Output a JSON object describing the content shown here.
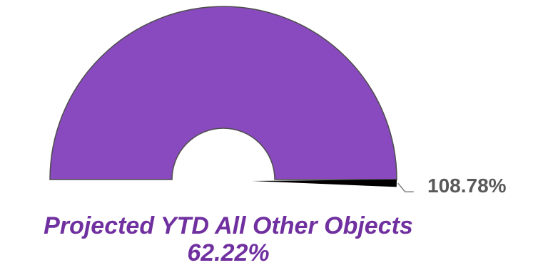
{
  "colors": {
    "fill": "#8a4abf",
    "stroke": "#4d4d4d",
    "marker": "#000000",
    "caption": "#7030a0",
    "label": "#595959"
  },
  "chart_data": {
    "type": "gauge",
    "title": "Projected YTD All Other Objects",
    "projected_value": 62.22,
    "projected_label": "62.22%",
    "marker_value": 108.78,
    "marker_label": "108.78%",
    "range": [
      0,
      100
    ]
  }
}
